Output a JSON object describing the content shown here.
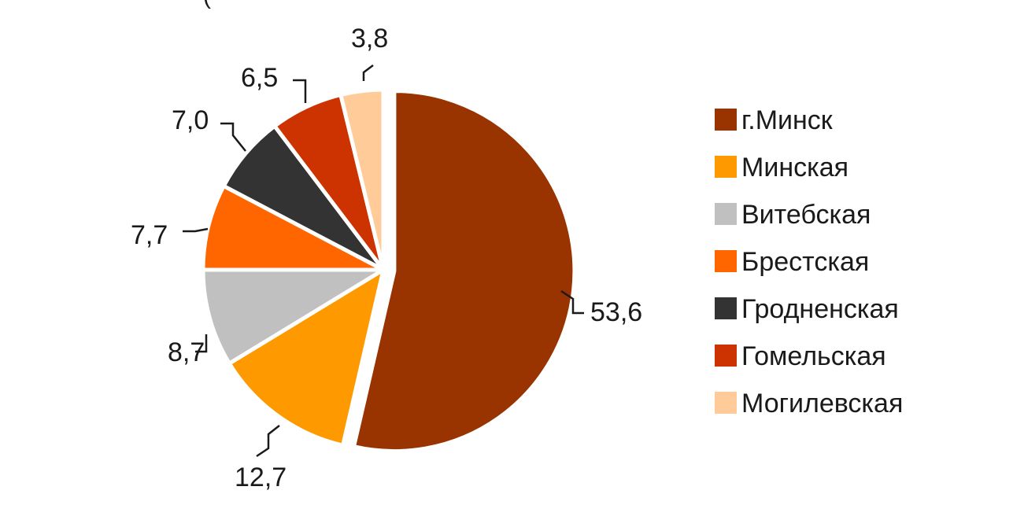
{
  "chart_data": {
    "type": "pie",
    "title": "(",
    "slices": [
      {
        "name": "г.Минск",
        "value": 53.6,
        "label": "53,6",
        "color": "#993300"
      },
      {
        "name": "Минская",
        "value": 12.7,
        "label": "12,7",
        "color": "#FF9900"
      },
      {
        "name": "Витебская",
        "value": 8.7,
        "label": "8,7",
        "color": "#C0C0C0"
      },
      {
        "name": "Брестская",
        "value": 7.7,
        "label": "7,7",
        "color": "#FF6600"
      },
      {
        "name": "Гродненская",
        "value": 7.0,
        "label": "7,0",
        "color": "#333333"
      },
      {
        "name": "Гомельская",
        "value": 6.5,
        "label": "6,5",
        "color": "#CC3300"
      },
      {
        "name": "Могилевская",
        "value": 3.8,
        "label": "3,8",
        "color": "#FFCC99"
      }
    ],
    "exploded": "г.Минск",
    "legend_position": "right"
  }
}
